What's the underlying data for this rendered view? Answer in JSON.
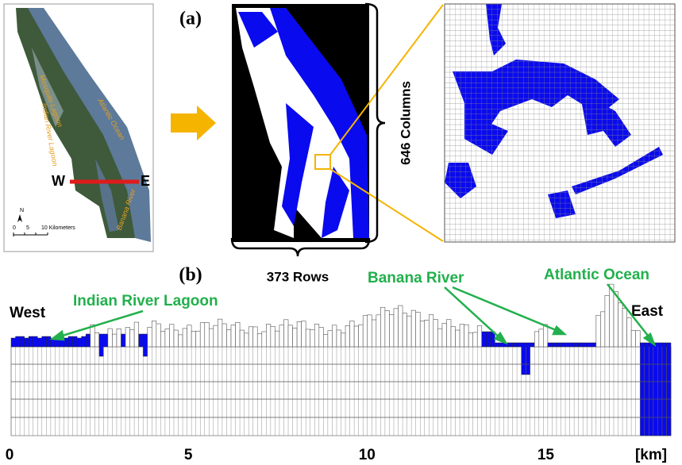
{
  "panel_a": {
    "label": "(a)",
    "map": {
      "labels": [
        "Mosquito Lagoon",
        "Atlantic Ocean",
        "Indian River Lagoon",
        "Banana River"
      ],
      "west": "W",
      "east": "E",
      "north": "N",
      "scale": [
        "0",
        "5",
        "10 Kilometers"
      ]
    },
    "columns_label": "646 Columns",
    "rows_label": "373 Rows"
  },
  "panel_b": {
    "label": "(b)",
    "west": "West",
    "east": "East",
    "annotations": [
      "Indian River Lagoon",
      "Banana River",
      "Atlantic Ocean"
    ],
    "axis": {
      "xlim": [
        0,
        18.5
      ],
      "xticks": [
        0,
        5,
        10,
        15
      ],
      "unit": "[km]"
    }
  }
}
